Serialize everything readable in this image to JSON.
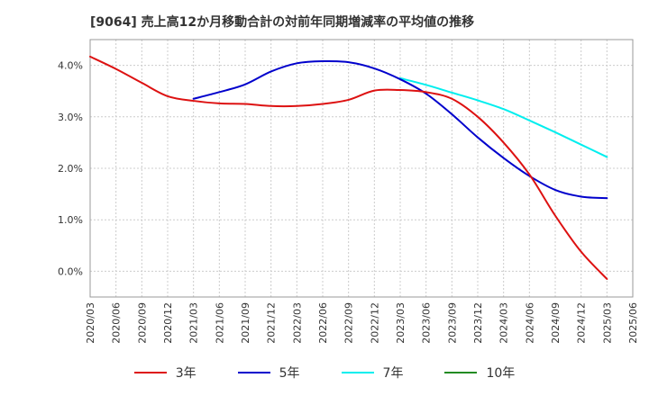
{
  "title": "[9064]  売上高12か月移動合計の対前年同期増減率の平均値の推移",
  "chart_data": {
    "type": "line",
    "x": [
      "2020/03",
      "2020/06",
      "2020/09",
      "2020/12",
      "2021/03",
      "2021/06",
      "2021/09",
      "2021/12",
      "2022/03",
      "2022/06",
      "2022/09",
      "2022/12",
      "2023/03",
      "2023/06",
      "2023/09",
      "2023/12",
      "2024/03",
      "2024/06",
      "2024/09",
      "2024/12",
      "2025/03",
      "2025/06"
    ],
    "y_ticks": [
      0.0,
      1.0,
      2.0,
      3.0,
      4.0
    ],
    "y_tick_labels": [
      "0.0%",
      "1.0%",
      "2.0%",
      "3.0%",
      "4.0%"
    ],
    "ylim": [
      -0.5,
      4.5
    ],
    "xlabel": "",
    "ylabel": "",
    "grid": true,
    "legend_position": "bottom",
    "series": [
      {
        "name": "3年",
        "color": "#dd1111",
        "values": [
          4.17,
          3.93,
          3.66,
          3.4,
          3.31,
          3.26,
          3.25,
          3.21,
          3.21,
          3.25,
          3.33,
          3.51,
          3.52,
          3.48,
          3.35,
          3.0,
          2.5,
          1.88,
          1.08,
          0.38,
          -0.15,
          null
        ]
      },
      {
        "name": "5年",
        "color": "#0000cc",
        "values": [
          null,
          null,
          null,
          null,
          3.35,
          3.48,
          3.63,
          3.88,
          4.04,
          4.08,
          4.06,
          3.94,
          3.73,
          3.45,
          3.05,
          2.6,
          2.2,
          1.85,
          1.58,
          1.45,
          1.42,
          null
        ]
      },
      {
        "name": "7年",
        "color": "#00eeee",
        "values": [
          null,
          null,
          null,
          null,
          null,
          null,
          null,
          null,
          null,
          null,
          null,
          null,
          3.75,
          3.62,
          3.47,
          3.32,
          3.15,
          2.93,
          2.7,
          2.46,
          2.22,
          null
        ]
      },
      {
        "name": "10年",
        "color": "#228b22",
        "values": [
          null,
          null,
          null,
          null,
          null,
          null,
          null,
          null,
          null,
          null,
          null,
          null,
          null,
          null,
          null,
          null,
          null,
          null,
          null,
          null,
          null,
          null
        ]
      }
    ]
  }
}
